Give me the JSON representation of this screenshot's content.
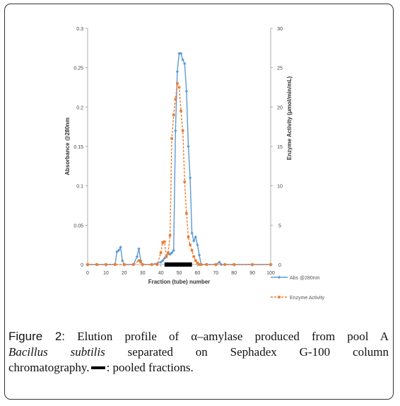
{
  "chart_data": {
    "type": "line",
    "xlabel": "Fraction (tube) number",
    "ylabel_left": "Absorbance @280nm",
    "ylabel_right": "Enzyme Activity (μmol/min/mL)",
    "x_ticks": [
      0,
      10,
      20,
      30,
      40,
      50,
      60,
      70,
      80,
      90,
      100
    ],
    "y_left_ticks": [
      "0",
      "0.05",
      "0.1",
      "0.15",
      "0.2",
      "0.25",
      "0.3"
    ],
    "y_right_ticks": [
      "0",
      "5",
      "10",
      "15",
      "20",
      "25",
      "30"
    ],
    "xlim": [
      0,
      100
    ],
    "ylim_left": [
      0,
      0.3
    ],
    "ylim_right": [
      0,
      30
    ],
    "legend_position": "right",
    "series": [
      {
        "name": "Abs @280nm",
        "axis": "left",
        "color": "#5b9bd5",
        "x": [
          0,
          5,
          10,
          15,
          16,
          17,
          18,
          19,
          20,
          25,
          27,
          28,
          29,
          30,
          35,
          40,
          41,
          42,
          43,
          44,
          45,
          46,
          47,
          48,
          49,
          50,
          51,
          52,
          53,
          54,
          55,
          56,
          57,
          58,
          59,
          60,
          61,
          62,
          65,
          70,
          72,
          73,
          75,
          80,
          90,
          100
        ],
        "y": [
          0,
          0,
          0,
          0,
          0.016,
          0.018,
          0.022,
          0.005,
          0,
          0,
          0.01,
          0.02,
          0.005,
          0,
          0,
          0.003,
          0.005,
          0.008,
          0.01,
          0.014,
          0.013,
          0.015,
          0.018,
          0.17,
          0.245,
          0.268,
          0.268,
          0.26,
          0.255,
          0.22,
          0.15,
          0.11,
          0.04,
          0.03,
          0.035,
          0.025,
          0.012,
          0,
          0,
          0,
          0.003,
          0,
          0,
          0,
          0,
          0
        ]
      },
      {
        "name": "Enzyme Activity",
        "axis": "right",
        "color": "#ed7d31",
        "x": [
          0,
          5,
          10,
          15,
          20,
          25,
          28,
          29,
          30,
          35,
          38,
          40,
          41,
          42,
          43,
          44,
          45,
          46,
          47,
          48,
          49,
          50,
          51,
          52,
          53,
          54,
          55,
          56,
          57,
          58,
          59,
          60,
          61,
          62,
          65,
          70,
          75,
          80,
          90,
          100
        ],
        "y": [
          0,
          0,
          0,
          0,
          0,
          0,
          0.5,
          0.3,
          0,
          0,
          0,
          1.5,
          2.8,
          2.9,
          1,
          1.5,
          3.7,
          16,
          19,
          21,
          23,
          22.5,
          19.5,
          17,
          10.5,
          6.5,
          3.5,
          2.5,
          1.8,
          1,
          0.5,
          0.2,
          0,
          0,
          0,
          0,
          0,
          0,
          0,
          0
        ]
      }
    ],
    "pooled_fractions": {
      "start": 42,
      "end": 57
    }
  },
  "caption": {
    "label": "Figure 2:",
    "line1": "Elution profile of α–amylase produced from pool A",
    "line2_italic": "Bacillus subtilis",
    "line2_rest": "separated on Sephadex G-100 column",
    "line3_pre": "chromatography.",
    "line3_post": ": pooled fractions."
  }
}
